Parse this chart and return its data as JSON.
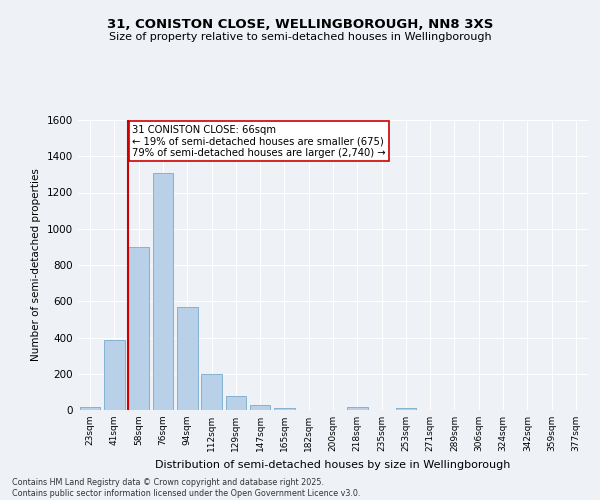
{
  "title": "31, CONISTON CLOSE, WELLINGBOROUGH, NN8 3XS",
  "subtitle": "Size of property relative to semi-detached houses in Wellingborough",
  "xlabel": "Distribution of semi-detached houses by size in Wellingborough",
  "ylabel": "Number of semi-detached properties",
  "categories": [
    "23sqm",
    "41sqm",
    "58sqm",
    "76sqm",
    "94sqm",
    "112sqm",
    "129sqm",
    "147sqm",
    "165sqm",
    "182sqm",
    "200sqm",
    "218sqm",
    "235sqm",
    "253sqm",
    "271sqm",
    "289sqm",
    "306sqm",
    "324sqm",
    "342sqm",
    "359sqm",
    "377sqm"
  ],
  "values": [
    15,
    385,
    900,
    1310,
    570,
    200,
    75,
    25,
    10,
    0,
    0,
    15,
    0,
    10,
    0,
    0,
    0,
    0,
    0,
    0,
    0
  ],
  "bar_color": "#b8d0e8",
  "bar_edge_color": "#7aaace",
  "annotation_title": "31 CONISTON CLOSE: 66sqm",
  "annotation_line1": "← 19% of semi-detached houses are smaller (675)",
  "annotation_line2": "79% of semi-detached houses are larger (2,740) →",
  "annotation_color": "#cc0000",
  "property_line_index": 2,
  "ylim": [
    0,
    1600
  ],
  "yticks": [
    0,
    200,
    400,
    600,
    800,
    1000,
    1200,
    1400,
    1600
  ],
  "background_color": "#eef2f7",
  "grid_color": "#ffffff",
  "footer_line1": "Contains HM Land Registry data © Crown copyright and database right 2025.",
  "footer_line2": "Contains public sector information licensed under the Open Government Licence v3.0."
}
